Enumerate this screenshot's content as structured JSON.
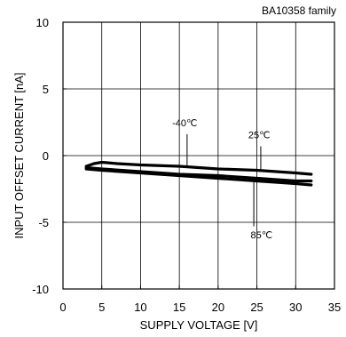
{
  "chart_data": {
    "type": "line",
    "title": "BA10358 family",
    "xlabel": "SUPPLY VOLTAGE [V]",
    "ylabel": "INPUT OFFSET CURRENT [nA]",
    "xlim": [
      0,
      35
    ],
    "ylim": [
      -10,
      10
    ],
    "xticks": [
      0,
      5,
      10,
      15,
      20,
      25,
      30,
      35
    ],
    "yticks": [
      10,
      5,
      0,
      -5,
      -10
    ],
    "grid": true,
    "legend": "none",
    "series": [
      {
        "name": "-40℃",
        "x": [
          3,
          4,
          5,
          7,
          10,
          15,
          20,
          25,
          30,
          32
        ],
        "y": [
          -0.8,
          -0.6,
          -0.5,
          -0.6,
          -0.7,
          -0.8,
          -1.0,
          -1.1,
          -1.3,
          -1.4
        ]
      },
      {
        "name": "25℃",
        "x": [
          3,
          5,
          10,
          15,
          20,
          25,
          30,
          32
        ],
        "y": [
          -0.9,
          -1.0,
          -1.2,
          -1.4,
          -1.5,
          -1.7,
          -1.9,
          -1.9
        ]
      },
      {
        "name": "85℃",
        "x": [
          3,
          5,
          10,
          15,
          20,
          25,
          30,
          32
        ],
        "y": [
          -1.0,
          -1.1,
          -1.3,
          -1.5,
          -1.7,
          -1.9,
          -2.1,
          -2.2
        ]
      }
    ],
    "annotations": [
      {
        "text": "-40℃",
        "x": 15.7,
        "y": 2.2
      },
      {
        "text": "25℃",
        "x": 25.3,
        "y": 1.3
      },
      {
        "text": "85℃",
        "x": 25.6,
        "y": -6.2
      }
    ],
    "colors": {
      "line": "#000000",
      "grid": "#000000"
    }
  }
}
